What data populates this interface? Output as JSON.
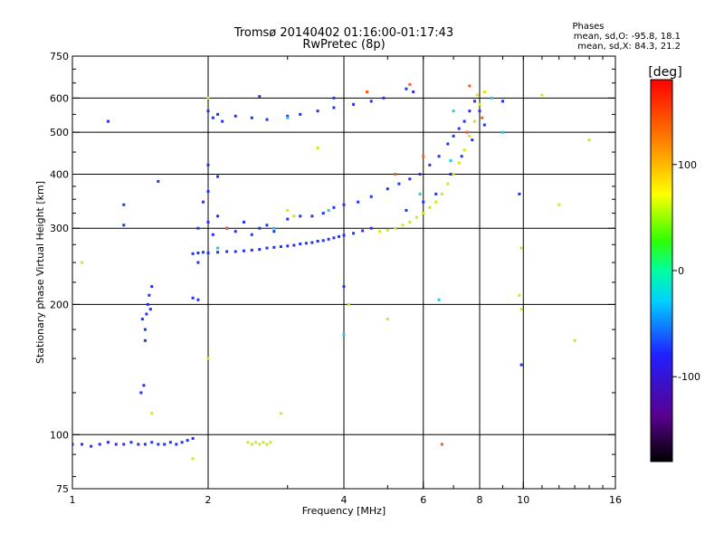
{
  "chart_data": {
    "type": "scatter",
    "title": "Tromsø 20140402 01:16:00-01:17:43",
    "subtitle": "RwPretec (8p)",
    "xlabel": "Frequency [MHz]",
    "ylabel": "Stationary phase Virtual Height [km]",
    "x_scale": "log",
    "y_scale": "log",
    "xlim": [
      1,
      16
    ],
    "ylim": [
      75,
      750
    ],
    "x_ticks": [
      1,
      2,
      4,
      6,
      8,
      10,
      16
    ],
    "y_ticks": [
      75,
      100,
      200,
      300,
      400,
      500,
      600,
      750
    ],
    "x_grid": [
      2,
      4,
      6,
      8,
      10
    ],
    "y_grid": [
      100,
      200,
      300,
      400,
      500,
      600
    ],
    "grid": true,
    "stats": {
      "heading": "Phases",
      "line_o": "mean, sd,O: -95.8, 18.1",
      "line_x": "mean, sd,X:  84.3, 21.2"
    },
    "colorbar": {
      "label": "[deg]",
      "range": [
        -180,
        180
      ],
      "ticks": [
        "100",
        "0",
        "-100"
      ],
      "tick_values": [
        100,
        0,
        -100
      ],
      "position": "right"
    },
    "series": [
      {
        "name": "O",
        "color": "#1e32ff",
        "points": [
          [
            1.0,
            95
          ],
          [
            1.05,
            95
          ],
          [
            1.1,
            94
          ],
          [
            1.15,
            95
          ],
          [
            1.2,
            96
          ],
          [
            1.25,
            95
          ],
          [
            1.3,
            95
          ],
          [
            1.35,
            96
          ],
          [
            1.4,
            95
          ],
          [
            1.45,
            95
          ],
          [
            1.5,
            96
          ],
          [
            1.55,
            95
          ],
          [
            1.6,
            95
          ],
          [
            1.65,
            96
          ],
          [
            1.7,
            95
          ],
          [
            1.75,
            96
          ],
          [
            1.8,
            97
          ],
          [
            1.85,
            98
          ],
          [
            1.43,
            185
          ],
          [
            1.45,
            175
          ],
          [
            1.46,
            190
          ],
          [
            1.47,
            200
          ],
          [
            1.48,
            210
          ],
          [
            1.49,
            195
          ],
          [
            1.5,
            220
          ],
          [
            1.45,
            165
          ],
          [
            1.44,
            130
          ],
          [
            1.42,
            125
          ],
          [
            1.85,
            207
          ],
          [
            1.9,
            205
          ],
          [
            1.9,
            250
          ],
          [
            1.85,
            262
          ],
          [
            1.9,
            263
          ],
          [
            1.95,
            264
          ],
          [
            2.0,
            263
          ],
          [
            2.1,
            264
          ],
          [
            2.2,
            265
          ],
          [
            2.3,
            265
          ],
          [
            2.4,
            266
          ],
          [
            2.5,
            267
          ],
          [
            2.6,
            268
          ],
          [
            2.7,
            270
          ],
          [
            2.8,
            271
          ],
          [
            2.9,
            272
          ],
          [
            3.0,
            273
          ],
          [
            3.1,
            274
          ],
          [
            3.2,
            276
          ],
          [
            3.3,
            277
          ],
          [
            3.4,
            278
          ],
          [
            3.5,
            280
          ],
          [
            3.6,
            281
          ],
          [
            3.7,
            283
          ],
          [
            3.8,
            285
          ],
          [
            3.9,
            287
          ],
          [
            4.0,
            289
          ],
          [
            4.2,
            292
          ],
          [
            4.4,
            296
          ],
          [
            4.6,
            300
          ],
          [
            1.9,
            300
          ],
          [
            2.0,
            310
          ],
          [
            2.05,
            290
          ],
          [
            2.1,
            320
          ],
          [
            2.2,
            300
          ],
          [
            2.3,
            295
          ],
          [
            2.4,
            310
          ],
          [
            2.5,
            290
          ],
          [
            2.6,
            300
          ],
          [
            2.7,
            305
          ],
          [
            2.8,
            295
          ],
          [
            3.0,
            315
          ],
          [
            3.2,
            320
          ],
          [
            3.4,
            320
          ],
          [
            3.6,
            325
          ],
          [
            3.8,
            335
          ],
          [
            4.0,
            340
          ],
          [
            4.3,
            345
          ],
          [
            4.6,
            355
          ],
          [
            5.0,
            370
          ],
          [
            5.3,
            380
          ],
          [
            5.6,
            390
          ],
          [
            5.9,
            400
          ],
          [
            6.2,
            420
          ],
          [
            6.5,
            440
          ],
          [
            6.8,
            470
          ],
          [
            7.0,
            490
          ],
          [
            7.2,
            510
          ],
          [
            7.4,
            530
          ],
          [
            7.6,
            560
          ],
          [
            7.8,
            590
          ],
          [
            8.0,
            560
          ],
          [
            8.2,
            520
          ],
          [
            5.5,
            330
          ],
          [
            6.0,
            345
          ],
          [
            6.4,
            360
          ],
          [
            6.9,
            400
          ],
          [
            7.3,
            440
          ],
          [
            7.7,
            480
          ],
          [
            2.0,
            560
          ],
          [
            2.05,
            540
          ],
          [
            2.1,
            550
          ],
          [
            2.15,
            530
          ],
          [
            2.3,
            545
          ],
          [
            2.5,
            540
          ],
          [
            2.7,
            535
          ],
          [
            3.0,
            545
          ],
          [
            3.2,
            550
          ],
          [
            3.5,
            560
          ],
          [
            3.8,
            570
          ],
          [
            4.2,
            580
          ],
          [
            4.6,
            590
          ],
          [
            4.9,
            600
          ],
          [
            5.5,
            630
          ],
          [
            5.7,
            620
          ],
          [
            2.0,
            420
          ],
          [
            2.1,
            395
          ],
          [
            2.0,
            365
          ],
          [
            1.95,
            345
          ],
          [
            9.0,
            590
          ],
          [
            9.8,
            360
          ],
          [
            9.9,
            145
          ],
          [
            1.3,
            340
          ],
          [
            1.3,
            305
          ],
          [
            1.2,
            530
          ],
          [
            1.55,
            385
          ],
          [
            2.6,
            605
          ],
          [
            4.0,
            220
          ],
          [
            3.8,
            600
          ]
        ]
      },
      {
        "name": "X",
        "color": "#d2e61e",
        "points": [
          [
            2.45,
            96
          ],
          [
            2.5,
            95
          ],
          [
            2.55,
            96
          ],
          [
            2.6,
            95
          ],
          [
            2.65,
            96
          ],
          [
            2.7,
            95
          ],
          [
            2.75,
            96
          ],
          [
            4.8,
            295
          ],
          [
            5.0,
            297
          ],
          [
            5.2,
            300
          ],
          [
            5.4,
            305
          ],
          [
            5.6,
            310
          ],
          [
            5.8,
            318
          ],
          [
            6.0,
            325
          ],
          [
            6.2,
            335
          ],
          [
            6.4,
            345
          ],
          [
            6.6,
            360
          ],
          [
            6.8,
            380
          ],
          [
            7.0,
            400
          ],
          [
            7.2,
            425
          ],
          [
            7.4,
            455
          ],
          [
            7.6,
            490
          ],
          [
            7.8,
            530
          ],
          [
            8.0,
            580
          ],
          [
            8.2,
            620
          ],
          [
            7.9,
            610
          ],
          [
            3.0,
            330
          ],
          [
            3.1,
            320
          ],
          [
            2.0,
            600
          ],
          [
            3.5,
            460
          ],
          [
            5.0,
            185
          ],
          [
            11.0,
            610
          ],
          [
            12.0,
            340
          ],
          [
            13.0,
            165
          ],
          [
            14.0,
            480
          ],
          [
            9.9,
            270
          ],
          [
            9.9,
            195
          ],
          [
            9.8,
            210
          ],
          [
            2.9,
            112
          ],
          [
            1.5,
            112
          ],
          [
            1.85,
            88
          ],
          [
            1.05,
            250
          ],
          [
            2.0,
            150
          ],
          [
            4.1,
            200
          ]
        ]
      },
      {
        "name": "other",
        "color": "#ff5a1e",
        "points": [
          [
            6.6,
            95
          ],
          [
            5.2,
            400
          ],
          [
            6.0,
            440
          ],
          [
            7.5,
            500
          ],
          [
            8.1,
            540
          ],
          [
            2.2,
            300
          ],
          [
            4.5,
            620
          ],
          [
            5.6,
            645
          ],
          [
            7.6,
            640
          ]
        ]
      },
      {
        "name": "cyan",
        "color": "#1ecbe6",
        "points": [
          [
            2.1,
            270
          ],
          [
            3.0,
            540
          ],
          [
            4.0,
            170
          ],
          [
            6.5,
            205
          ],
          [
            7.0,
            560
          ],
          [
            8.5,
            600
          ],
          [
            9.0,
            500
          ],
          [
            2.8,
            300
          ],
          [
            3.7,
            330
          ],
          [
            5.9,
            360
          ],
          [
            6.9,
            430
          ]
        ]
      }
    ]
  }
}
